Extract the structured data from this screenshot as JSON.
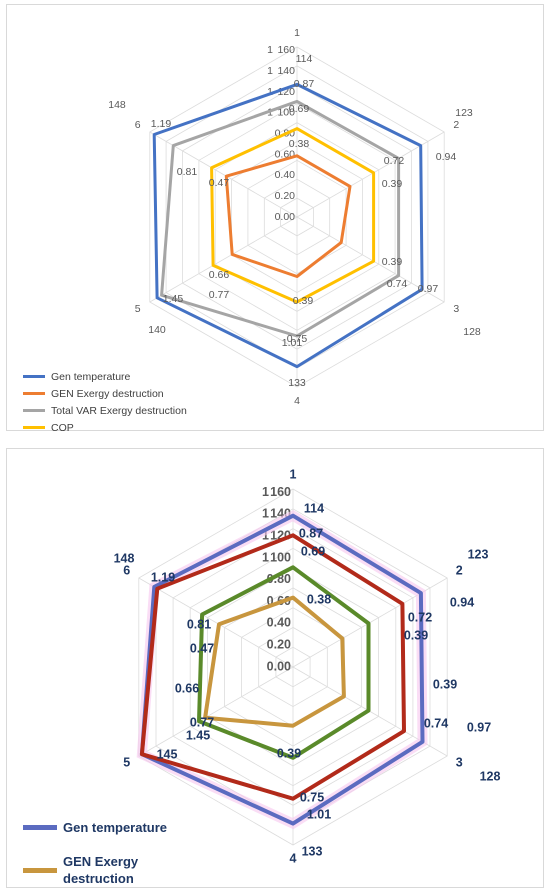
{
  "chart_data": [
    {
      "type": "radar",
      "axis_labels": [
        "1",
        "2",
        "3",
        "4",
        "5",
        "6"
      ],
      "gridline_labels": [
        "0.00",
        "0.20",
        "0.40",
        "0.60",
        "0.80",
        "100",
        "120",
        "140",
        "160"
      ],
      "gridline_labels_extra": [
        "1",
        "1",
        "1",
        "1"
      ],
      "series": [
        {
          "name": "Gen temperature",
          "color": "#4472c4",
          "values": [
            114,
            123,
            128,
            133,
            140,
            148
          ]
        },
        {
          "name": "GEN Exergy destruction",
          "color": "#ed7d31",
          "values": [
            0.87,
            0.94,
            0.97,
            1.01,
            1.45,
            1.19
          ]
        },
        {
          "name": "Total VAR Exergy destruction",
          "color": "#a5a5a5",
          "values": [
            0.69,
            0.72,
            0.74,
            0.75,
            0.77,
            0.81
          ]
        },
        {
          "name": "COP",
          "color": "#ffc000",
          "values": [
            0.38,
            0.39,
            0.39,
            0.39,
            0.66,
            0.47
          ]
        }
      ],
      "point_labels": {
        "1": [
          "114",
          "0.87",
          "0.69",
          "0.38"
        ],
        "2": [
          "123",
          "0.94",
          "0.72",
          "0.39"
        ],
        "3": [
          "128",
          "0.97",
          "0.74",
          "0.39"
        ],
        "4": [
          "133",
          "1.01",
          "0.75",
          "0.39"
        ],
        "5": [
          "140",
          "1.45",
          "0.77",
          "0.66"
        ],
        "6": [
          "148",
          "1.19",
          "0.81",
          "0.47"
        ]
      },
      "legend_position": "bottom-left"
    },
    {
      "type": "radar",
      "axis_labels": [
        "1",
        "2",
        "3",
        "4",
        "5",
        "6"
      ],
      "gridline_labels": [
        "0.00",
        "0.20",
        "0.40",
        "0.60",
        "0.80",
        "100",
        "120",
        "140",
        "160"
      ],
      "gridline_labels_extra": [
        "1",
        "1",
        "1",
        "1"
      ],
      "series": [
        {
          "name": "Gen temperature",
          "color": "#5b6bc0",
          "values": [
            114,
            123,
            128,
            133,
            145,
            148
          ]
        },
        {
          "name": "GEN Exergy destruction",
          "color": "#c8963e",
          "values": [
            0.38,
            0.39,
            0.39,
            0.39,
            0.66,
            0.47
          ]
        }
      ],
      "unlabeled_series": [
        {
          "color": "#b22a1a",
          "values": [
            0.87,
            0.94,
            0.97,
            1.01,
            1.45,
            1.19
          ]
        },
        {
          "color": "#5a8a2a",
          "values": [
            0.69,
            0.72,
            0.74,
            0.75,
            0.77,
            0.81
          ]
        }
      ],
      "point_labels": {
        "1": [
          "114",
          "0.87",
          "0.69",
          "0.38"
        ],
        "2": [
          "123",
          "0.94",
          "0.72",
          "0.39"
        ],
        "3": [
          "128",
          "0.97",
          "0.74",
          "0.39"
        ],
        "4": [
          "133",
          "1.01",
          "0.75",
          "0.39"
        ],
        "5": [
          "145",
          "1.45",
          "0.77",
          "0.66"
        ],
        "6": [
          "148",
          "1.19",
          "0.81",
          "0.47"
        ]
      },
      "legend_position": "bottom-left"
    }
  ]
}
